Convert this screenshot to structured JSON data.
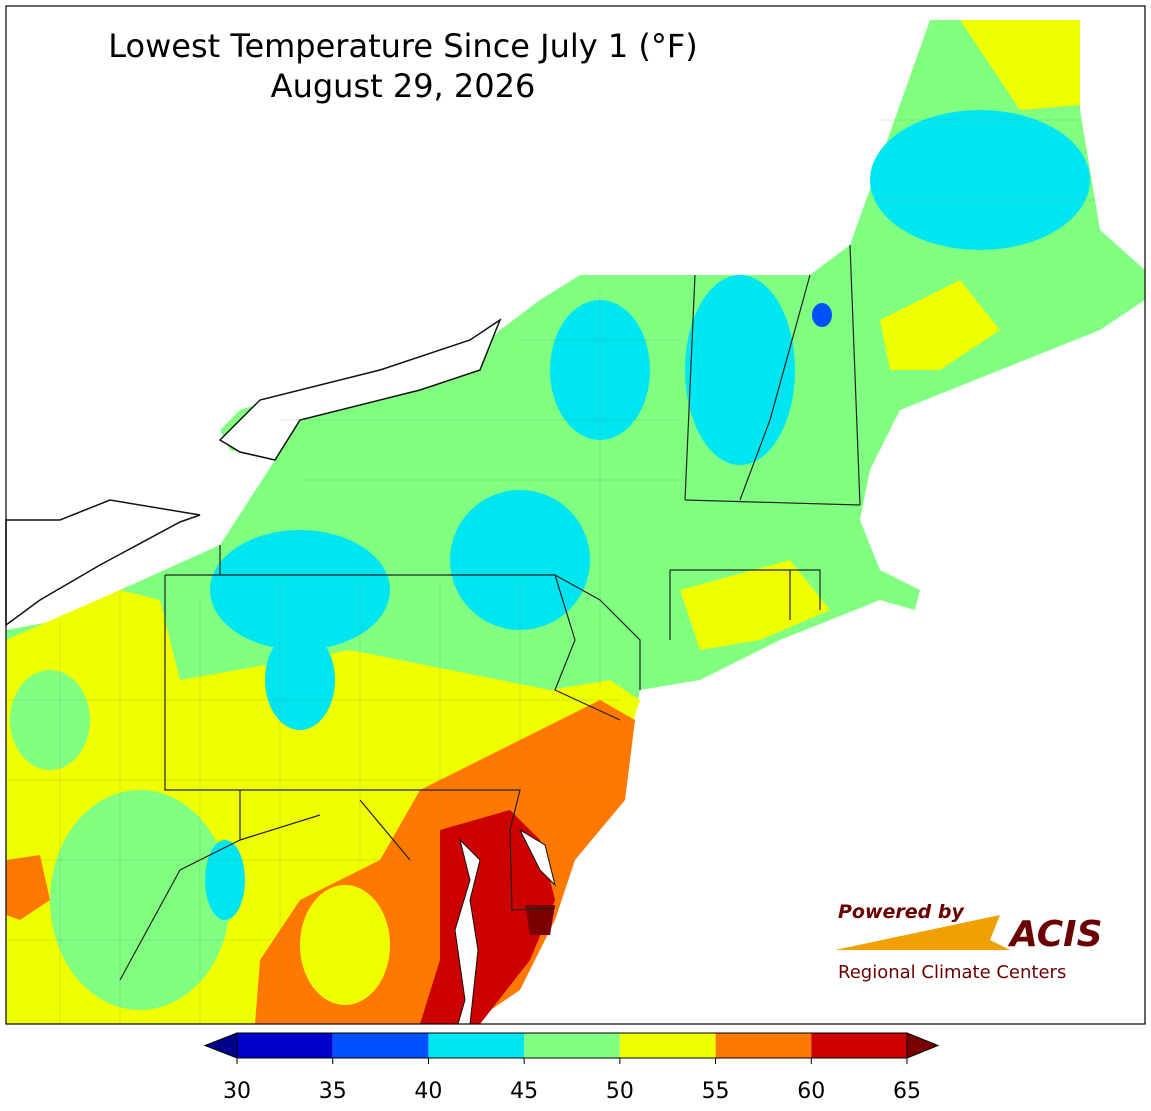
{
  "title": "Lowest Temperature Since July 1 (°F)",
  "subtitle": "August 29, 2026",
  "colorbar": {
    "ticks": [
      30,
      35,
      40,
      45,
      50,
      55,
      60,
      65
    ],
    "under_color": "#00008b",
    "colors": [
      "#0000cd",
      "#0050ff",
      "#00e6f0",
      "#80ff80",
      "#f0ff00",
      "#ff7800",
      "#cd0000"
    ],
    "over_color": "#7a0000"
  },
  "logo": {
    "powered": "Powered by",
    "name": "ACIS",
    "org": "Regional Climate Centers"
  }
}
